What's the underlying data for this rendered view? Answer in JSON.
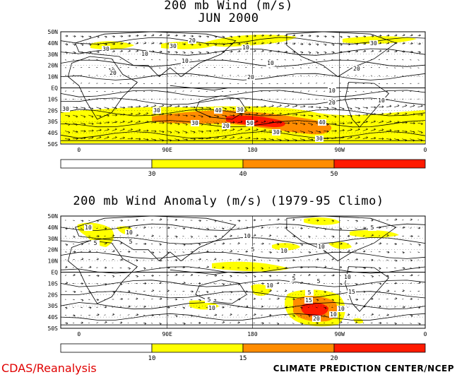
{
  "footer": {
    "left": "CDAS/Reanalysis",
    "right": "CLIMATE PREDICTION CENTER/NCEP"
  },
  "colors": {
    "level1": "#ffff00",
    "level2": "#ff8c00",
    "level3": "#ff1a00",
    "contour": "#000000"
  },
  "chart_data": [
    {
      "type": "heatmap",
      "title": "200 mb Wind (m/s)",
      "subtitle": "JUN 2000",
      "lat_labels": [
        "50N",
        "40N",
        "30N",
        "20N",
        "10N",
        "EQ",
        "10S",
        "20S",
        "30S",
        "40S",
        "50S"
      ],
      "lon_labels": [
        "0",
        "90E",
        "180",
        "90W",
        "0"
      ],
      "colorbar": {
        "labels": [
          "30",
          "40",
          "50"
        ],
        "colors": [
          "#ffffff",
          "#ffff00",
          "#ff8c00",
          "#ff1a00"
        ]
      },
      "contour_labels": [
        "30",
        "30",
        "20",
        "10",
        "10",
        "20",
        "10",
        "10",
        "20",
        "10",
        "30",
        "30",
        "40",
        "30",
        "50",
        "30",
        "40",
        "30",
        "30",
        "20",
        "20",
        "10",
        "10",
        "20",
        "30"
      ]
    },
    {
      "type": "heatmap",
      "title": "200 mb Wind Anomaly (m/s) (1979-95 Climo)",
      "lat_labels": [
        "50N",
        "40N",
        "30N",
        "20N",
        "10N",
        "EQ",
        "10S",
        "20S",
        "30S",
        "40S",
        "50S"
      ],
      "lon_labels": [
        "0",
        "90E",
        "180",
        "90W",
        "0"
      ],
      "colorbar": {
        "labels": [
          "10",
          "15",
          "20"
        ],
        "colors": [
          "#ffffff",
          "#ffff00",
          "#ff8c00",
          "#ff1a00"
        ]
      },
      "contour_labels": [
        "10",
        "5",
        "10",
        "5",
        "10",
        "10",
        "5",
        "10",
        "5",
        "10",
        "5",
        "5",
        "10",
        "5",
        "10",
        "15",
        "20",
        "10",
        "15",
        "5",
        "10"
      ]
    }
  ]
}
